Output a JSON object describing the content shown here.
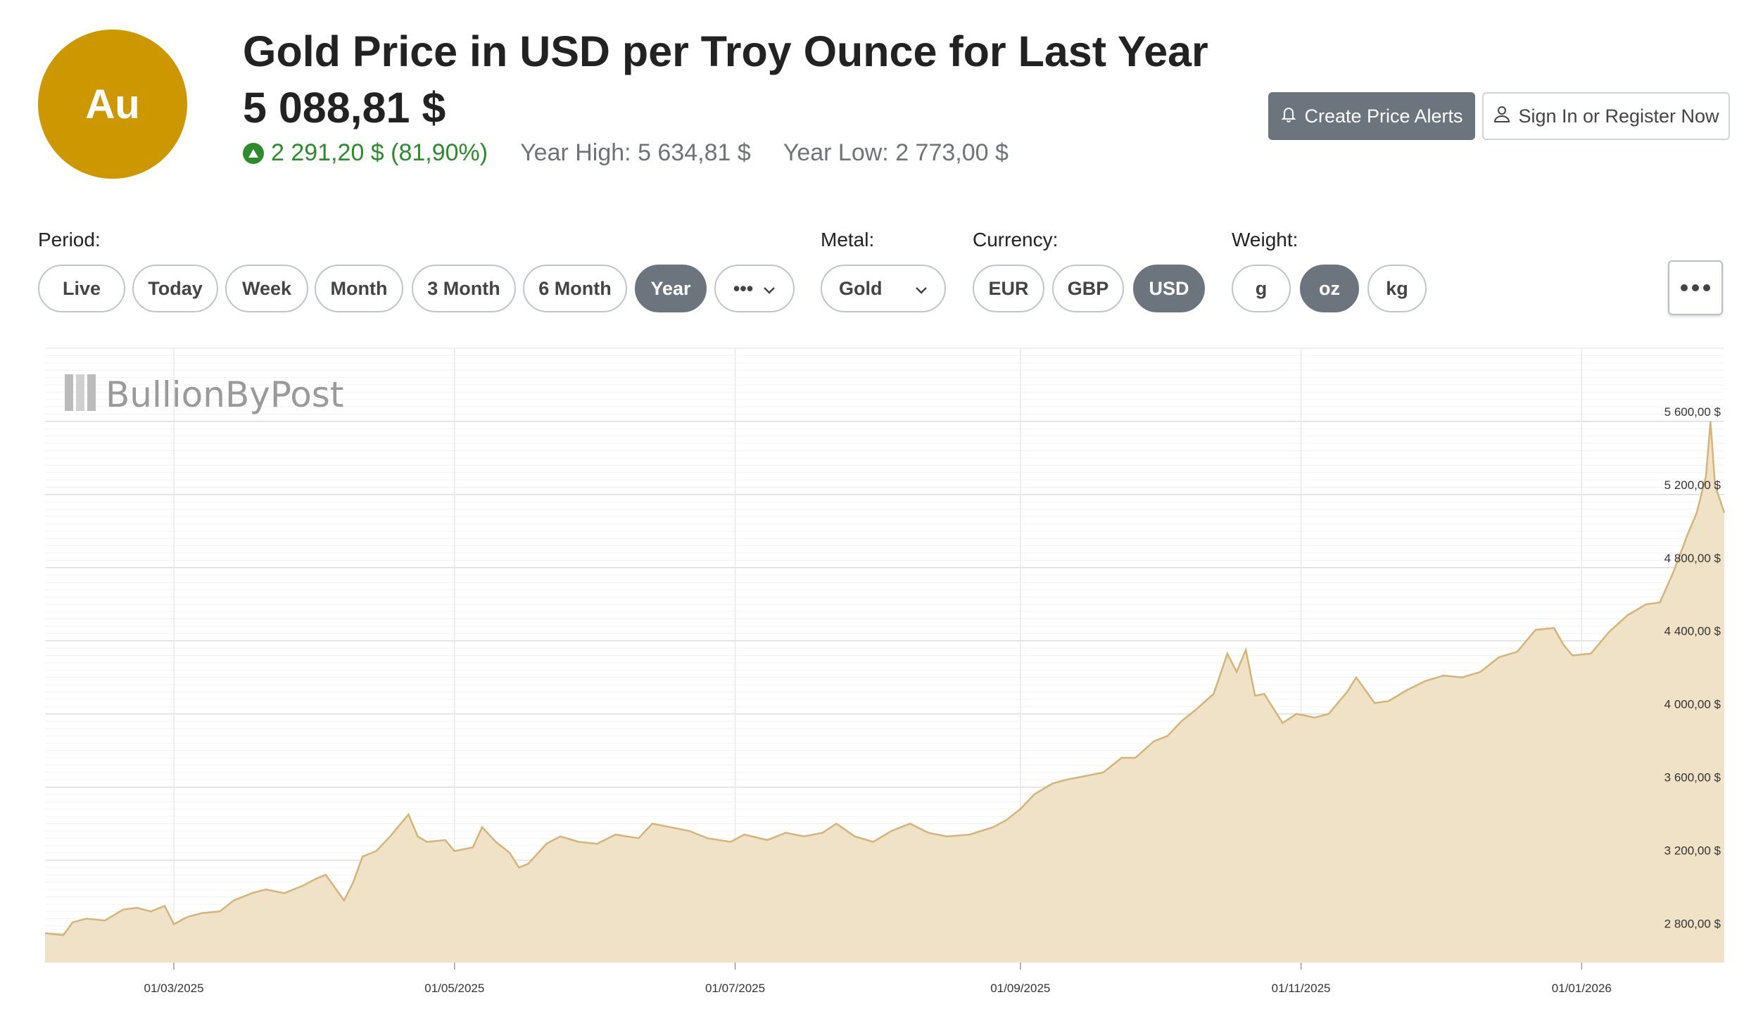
{
  "header": {
    "badge": "Au",
    "title": "Gold Price in USD per Troy Ounce for Last Year",
    "price": "5 088,81 $",
    "change": "2 291,20 $ (81,90%)",
    "year_high": "Year High: 5 634,81 $",
    "year_low": "Year Low: 2 773,00 $"
  },
  "actions": {
    "alerts_label": "Create Price Alerts",
    "signin_label": "Sign In or Register Now"
  },
  "filters": {
    "period_label": "Period:",
    "periods": [
      "Live",
      "Today",
      "Week",
      "Month",
      "3 Month",
      "6 Month",
      "Year"
    ],
    "period_active": "Year",
    "period_more": "•••",
    "metal_label": "Metal:",
    "metal_value": "Gold",
    "currency_label": "Currency:",
    "currencies": [
      "EUR",
      "GBP",
      "USD"
    ],
    "currency_active": "USD",
    "weight_label": "Weight:",
    "weights": [
      "g",
      "oz",
      "kg"
    ],
    "weight_active": "oz"
  },
  "colors": {
    "gold": "#cc9700",
    "accent_gray": "#6c757d",
    "positive": "#2d8a2d",
    "area_fill": "#efe2c6",
    "area_line": "#d4b47a"
  },
  "watermark": "BullionByPost",
  "chart_data": {
    "type": "area",
    "title": "",
    "xlabel": "",
    "ylabel": "",
    "x_ticks": [
      "01/03/2025",
      "01/05/2025",
      "01/07/2025",
      "01/09/2025",
      "01/11/2025",
      "01/01/2026"
    ],
    "y_ticks": [
      "2 800,00 $",
      "3 200,00 $",
      "3 600,00 $",
      "4 000,00 $",
      "4 400,00 $",
      "4 800,00 $",
      "5 200,00 $",
      "5 600,00 $"
    ],
    "y_tick_values": [
      2800,
      3200,
      3600,
      4000,
      4400,
      4800,
      5200,
      5600
    ],
    "ylim": [
      2640,
      6000
    ],
    "xlim": [
      "2025-02-01",
      "2026-02-01"
    ],
    "grid": true,
    "series": [
      {
        "values": [
          [
            "2025-02-01",
            2800
          ],
          [
            "2025-02-05",
            2790
          ],
          [
            "2025-02-07",
            2860
          ],
          [
            "2025-02-10",
            2880
          ],
          [
            "2025-02-14",
            2870
          ],
          [
            "2025-02-18",
            2930
          ],
          [
            "2025-02-21",
            2940
          ],
          [
            "2025-02-24",
            2920
          ],
          [
            "2025-02-27",
            2950
          ],
          [
            "2025-03-01",
            2850
          ],
          [
            "2025-03-04",
            2890
          ],
          [
            "2025-03-07",
            2910
          ],
          [
            "2025-03-11",
            2920
          ],
          [
            "2025-03-14",
            2980
          ],
          [
            "2025-03-18",
            3020
          ],
          [
            "2025-03-21",
            3040
          ],
          [
            "2025-03-25",
            3020
          ],
          [
            "2025-03-29",
            3060
          ],
          [
            "2025-04-01",
            3100
          ],
          [
            "2025-04-03",
            3120
          ],
          [
            "2025-04-07",
            2980
          ],
          [
            "2025-04-09",
            3080
          ],
          [
            "2025-04-11",
            3220
          ],
          [
            "2025-04-14",
            3250
          ],
          [
            "2025-04-17",
            3330
          ],
          [
            "2025-04-21",
            3450
          ],
          [
            "2025-04-23",
            3330
          ],
          [
            "2025-04-25",
            3300
          ],
          [
            "2025-04-29",
            3310
          ],
          [
            "2025-05-01",
            3250
          ],
          [
            "2025-05-05",
            3270
          ],
          [
            "2025-05-07",
            3380
          ],
          [
            "2025-05-10",
            3300
          ],
          [
            "2025-05-13",
            3240
          ],
          [
            "2025-05-15",
            3160
          ],
          [
            "2025-05-17",
            3180
          ],
          [
            "2025-05-21",
            3290
          ],
          [
            "2025-05-24",
            3330
          ],
          [
            "2025-05-28",
            3300
          ],
          [
            "2025-06-01",
            3290
          ],
          [
            "2025-06-05",
            3340
          ],
          [
            "2025-06-10",
            3320
          ],
          [
            "2025-06-13",
            3400
          ],
          [
            "2025-06-17",
            3380
          ],
          [
            "2025-06-21",
            3360
          ],
          [
            "2025-06-25",
            3320
          ],
          [
            "2025-06-30",
            3300
          ],
          [
            "2025-07-03",
            3340
          ],
          [
            "2025-07-08",
            3310
          ],
          [
            "2025-07-12",
            3350
          ],
          [
            "2025-07-16",
            3330
          ],
          [
            "2025-07-20",
            3350
          ],
          [
            "2025-07-23",
            3400
          ],
          [
            "2025-07-27",
            3330
          ],
          [
            "2025-07-31",
            3300
          ],
          [
            "2025-08-04",
            3360
          ],
          [
            "2025-08-08",
            3400
          ],
          [
            "2025-08-12",
            3350
          ],
          [
            "2025-08-16",
            3330
          ],
          [
            "2025-08-21",
            3340
          ],
          [
            "2025-08-26",
            3380
          ],
          [
            "2025-08-29",
            3420
          ],
          [
            "2025-09-01",
            3480
          ],
          [
            "2025-09-04",
            3560
          ],
          [
            "2025-09-08",
            3620
          ],
          [
            "2025-09-11",
            3640
          ],
          [
            "2025-09-15",
            3660
          ],
          [
            "2025-09-19",
            3680
          ],
          [
            "2025-09-23",
            3760
          ],
          [
            "2025-09-26",
            3760
          ],
          [
            "2025-09-30",
            3850
          ],
          [
            "2025-10-03",
            3880
          ],
          [
            "2025-10-06",
            3960
          ],
          [
            "2025-10-09",
            4020
          ],
          [
            "2025-10-13",
            4110
          ],
          [
            "2025-10-16",
            4330
          ],
          [
            "2025-10-18",
            4230
          ],
          [
            "2025-10-20",
            4350
          ],
          [
            "2025-10-22",
            4100
          ],
          [
            "2025-10-24",
            4110
          ],
          [
            "2025-10-28",
            3950
          ],
          [
            "2025-10-31",
            4000
          ],
          [
            "2025-11-04",
            3980
          ],
          [
            "2025-11-07",
            4000
          ],
          [
            "2025-11-11",
            4120
          ],
          [
            "2025-11-13",
            4200
          ],
          [
            "2025-11-17",
            4060
          ],
          [
            "2025-11-20",
            4070
          ],
          [
            "2025-11-24",
            4130
          ],
          [
            "2025-11-28",
            4180
          ],
          [
            "2025-12-02",
            4210
          ],
          [
            "2025-12-06",
            4200
          ],
          [
            "2025-12-10",
            4230
          ],
          [
            "2025-12-14",
            4310
          ],
          [
            "2025-12-18",
            4340
          ],
          [
            "2025-12-22",
            4460
          ],
          [
            "2025-12-26",
            4470
          ],
          [
            "2025-12-28",
            4380
          ],
          [
            "2025-12-30",
            4320
          ],
          [
            "2026-01-03",
            4330
          ],
          [
            "2026-01-07",
            4450
          ],
          [
            "2026-01-11",
            4540
          ],
          [
            "2026-01-15",
            4600
          ],
          [
            "2026-01-18",
            4610
          ],
          [
            "2026-01-21",
            4780
          ],
          [
            "2026-01-24",
            4980
          ],
          [
            "2026-01-26",
            5100
          ],
          [
            "2026-01-28",
            5300
          ],
          [
            "2026-01-29",
            5600
          ],
          [
            "2026-01-30",
            5250
          ],
          [
            "2026-02-01",
            5100
          ]
        ]
      }
    ]
  }
}
